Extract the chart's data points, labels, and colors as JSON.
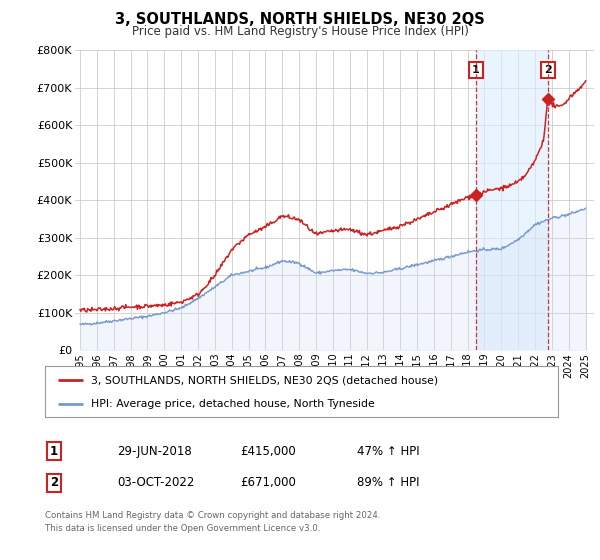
{
  "title": "3, SOUTHLANDS, NORTH SHIELDS, NE30 2QS",
  "subtitle": "Price paid vs. HM Land Registry's House Price Index (HPI)",
  "ylim": [
    0,
    800000
  ],
  "yticks": [
    0,
    100000,
    200000,
    300000,
    400000,
    500000,
    600000,
    700000,
    800000
  ],
  "ytick_labels": [
    "£0",
    "£100K",
    "£200K",
    "£300K",
    "£400K",
    "£500K",
    "£600K",
    "£700K",
    "£800K"
  ],
  "xlim_start": 1994.7,
  "xlim_end": 2025.5,
  "xticks": [
    1995,
    1996,
    1997,
    1998,
    1999,
    2000,
    2001,
    2002,
    2003,
    2004,
    2005,
    2006,
    2007,
    2008,
    2009,
    2010,
    2011,
    2012,
    2013,
    2014,
    2015,
    2016,
    2017,
    2018,
    2019,
    2020,
    2021,
    2022,
    2023,
    2024,
    2025
  ],
  "hpi_color": "#7799cc",
  "hpi_fill_color": "#ccddf5",
  "price_color": "#cc2222",
  "bg_color": "#ffffff",
  "plot_bg_color": "#ffffff",
  "grid_color": "#cccccc",
  "shade_color": "#ddeeff",
  "marker1_date": 2018.49,
  "marker1_price": 415000,
  "marker2_date": 2022.75,
  "marker2_price": 671000,
  "vline_color": "#cc2222",
  "legend_label_price": "3, SOUTHLANDS, NORTH SHIELDS, NE30 2QS (detached house)",
  "legend_label_hpi": "HPI: Average price, detached house, North Tyneside",
  "annotation1_date": "29-JUN-2018",
  "annotation1_price": "£415,000",
  "annotation1_pct": "47% ↑ HPI",
  "annotation2_date": "03-OCT-2022",
  "annotation2_price": "£671,000",
  "annotation2_pct": "89% ↑ HPI",
  "footer1": "Contains HM Land Registry data © Crown copyright and database right 2024.",
  "footer2": "This data is licensed under the Open Government Licence v3.0."
}
